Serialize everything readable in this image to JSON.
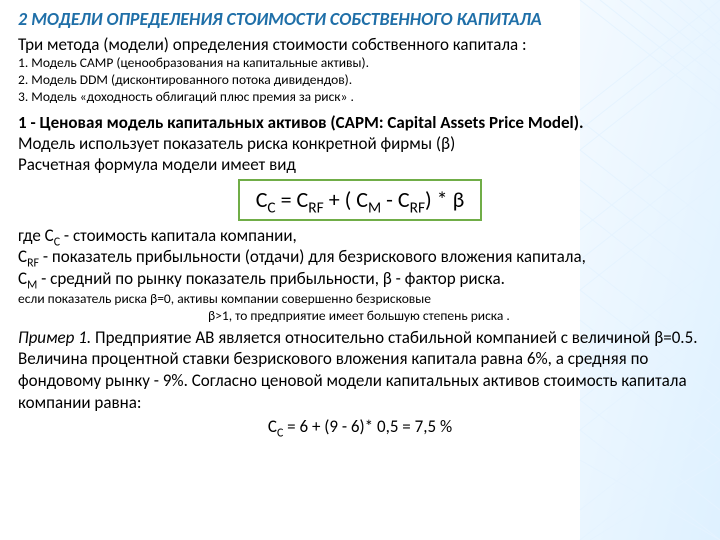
{
  "colors": {
    "title": "#1f6fa8",
    "formula_border": "#70ad47",
    "text": "#000000",
    "bg_light": "#eaf6ff",
    "grid": "#cce8ff"
  },
  "title": "2 МОДЕЛИ ОПРЕДЕЛЕНИЯ СТОИМОСТИ СОБСТВЕННОГО КАПИТАЛА",
  "subtitle": "Три метода (модели) определения стоимости собственного капитала :",
  "models": {
    "m1": "1. Модель САМР (ценообразования на капитальные активы).",
    "m2": "2. Модель DDM (дисконтированного потока дивидендов).",
    "m3": "3. Модель «доходность облигаций плюс премия за риск» ."
  },
  "section1": {
    "head_a": "1 - Ценовая модель капитальных активов (САРМ: Capital Assets Price Model).",
    "line2": "Модель использует показатель риска конкретной фирмы (β)",
    "line3": "Расчетная формула модели имеет вид"
  },
  "formula": {
    "text_html": "С<sub>С</sub> = C<sub>RF</sub> + ( С<sub>M</sub> - C<sub>RF</sub>) * β"
  },
  "where": {
    "l1_html": "где С<sub>С</sub> - стоимость капитала компании,",
    "l2_html": " C<sub>RF</sub> - показатель прибыльности (отдачи) для безрискового вложения капитала,",
    "l3_html": " С<sub>M</sub> - средний по рынку показатель прибыльности,   β - фактор риска."
  },
  "beta_notes": {
    "n1": "если показатель риска  β=0, активы компании совершенно безрисковые",
    "n2": "β>1, то предприятие имеет большую степень риска ."
  },
  "example": {
    "label": "Пример 1.",
    "body": " Предприятие АВ является относительно стабильной компанией с величиной β=0.5. Величина процентной ставки безрискового вложения капитала равна 6%, а средняя по фондовому рынку - 9%. Согласно ценовой модели капитальных активов стоимость капитала компании равна:",
    "calc_html": "С<sub>С</sub> = 6 + (9 - 6)* 0,5 = 7,5 %"
  }
}
